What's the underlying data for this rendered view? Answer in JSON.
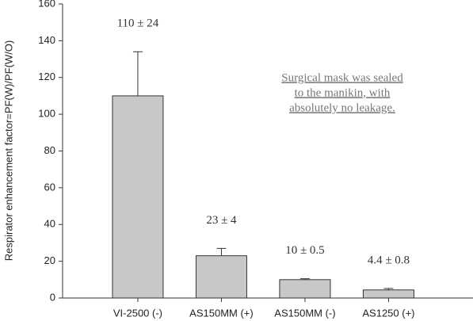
{
  "chart_data": {
    "type": "bar",
    "y_label": "Respirator enhancement factor=PF(W)/PF(W/O)",
    "annotation": [
      "Surgical mask was sealed",
      "to the manikin, with",
      "absolutely no leakage."
    ],
    "categories": [
      "VI-2500 (-)",
      "AS150MM (+)",
      "AS150MM (-)",
      "AS1250 (+)"
    ],
    "values": [
      110,
      23,
      10,
      4.4
    ],
    "errors": [
      24,
      4,
      0.5,
      0.8
    ],
    "value_labels": [
      "110 ± 24",
      "23 ± 4",
      "10 ± 0.5",
      "4.4 ± 0.8"
    ],
    "color": "#c8c8c8",
    "ylim": [
      0,
      160
    ],
    "yticks": [
      0,
      20,
      40,
      60,
      80,
      100,
      120,
      140,
      160
    ]
  }
}
